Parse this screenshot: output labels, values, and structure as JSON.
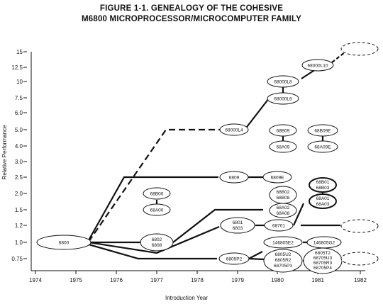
{
  "title_line1": "FIGURE 1-1. GENEALOGY OF THE COHESIVE",
  "title_line2": "M6800 MICROPROCESSOR/MICROCOMPUTER FAMILY",
  "y_axis": {
    "label": "Relative Performance",
    "ticks": [
      "15",
      "12.5",
      "10",
      "7.5",
      "6.0",
      "5.0",
      "4.0",
      "3.0",
      "2.5",
      "2.0",
      "1.5",
      "1.2",
      "1.0",
      "0.75"
    ]
  },
  "x_axis": {
    "label": "Introduction Year",
    "ticks": [
      "1974",
      "1975",
      "1976",
      "1977",
      "1978",
      "1979",
      "1980",
      "1981",
      "1982"
    ]
  },
  "nodes": [
    {
      "id": "n6800",
      "lines": [
        "6800"
      ]
    },
    {
      "id": "n68B00",
      "lines": [
        "68B00"
      ]
    },
    {
      "id": "n68A00",
      "lines": [
        "68A00"
      ]
    },
    {
      "id": "n6802",
      "lines": [
        "6802",
        "6808"
      ]
    },
    {
      "id": "n6801",
      "lines": [
        "6801",
        "6803"
      ]
    },
    {
      "id": "n6809",
      "lines": [
        "6809"
      ]
    },
    {
      "id": "n68000L4",
      "lines": [
        "68000L4"
      ]
    },
    {
      "id": "n6805P2",
      "lines": [
        "6805P2"
      ]
    },
    {
      "id": "n68000L8",
      "lines": [
        "68000L8"
      ]
    },
    {
      "id": "n68000L6",
      "lines": [
        "68000L6"
      ]
    },
    {
      "id": "n68B09",
      "lines": [
        "68B09"
      ]
    },
    {
      "id": "n68A09",
      "lines": [
        "68A09"
      ]
    },
    {
      "id": "n6809E",
      "lines": [
        "6809E"
      ]
    },
    {
      "id": "n68B02",
      "lines": [
        "68B02",
        "68B08"
      ]
    },
    {
      "id": "n68A02",
      "lines": [
        "68A02",
        "68A08"
      ]
    },
    {
      "id": "n68701",
      "lines": [
        "68701"
      ]
    },
    {
      "id": "n146805E2",
      "lines": [
        "146805E2"
      ]
    },
    {
      "id": "n6805U2",
      "lines": [
        "6805U2",
        "6805R2",
        "68705P3"
      ]
    },
    {
      "id": "n68000L10",
      "lines": [
        "68000L10"
      ]
    },
    {
      "id": "n68B09E",
      "lines": [
        "68B09E"
      ]
    },
    {
      "id": "n68A09E",
      "lines": [
        "68A09E"
      ]
    },
    {
      "id": "n68B01",
      "lines": [
        "68B01",
        "68B03"
      ]
    },
    {
      "id": "n68A01",
      "lines": [
        "68A01",
        "68A03"
      ]
    },
    {
      "id": "n146805G2",
      "lines": [
        "146805G2"
      ]
    },
    {
      "id": "n6805T2",
      "lines": [
        "6805T2",
        "68705U3",
        "68705R3",
        "68705P4"
      ]
    }
  ],
  "future_nodes": 3
}
